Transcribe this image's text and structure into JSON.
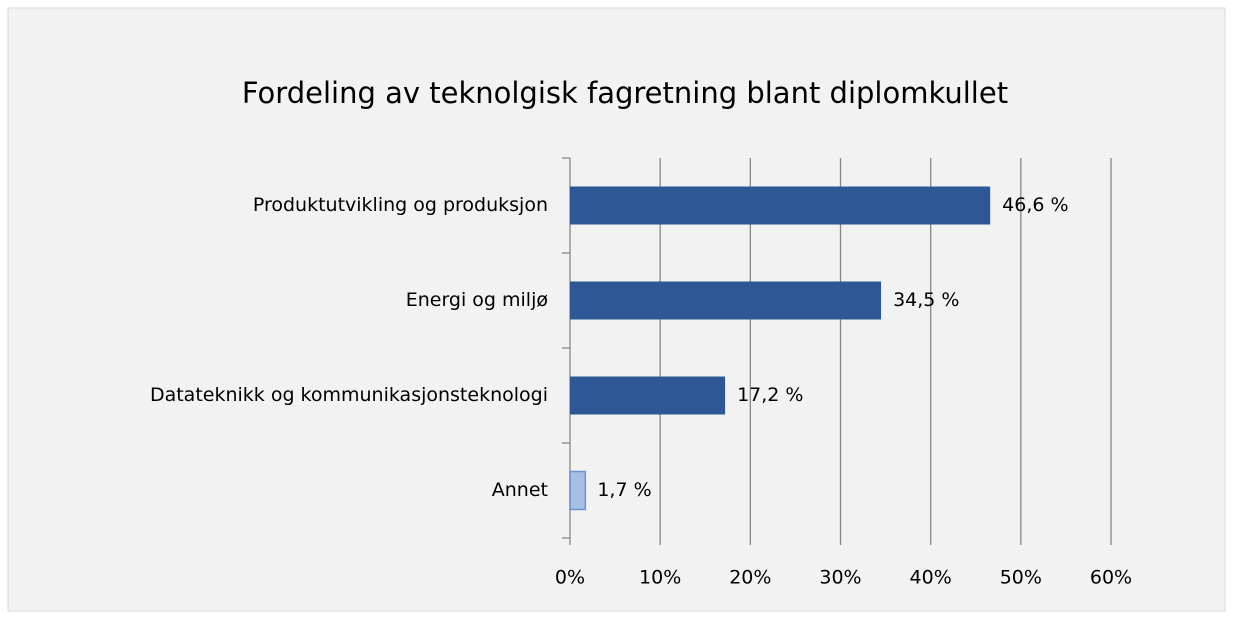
{
  "chart_data": {
    "type": "bar",
    "orientation": "horizontal",
    "title": "Fordeling av teknolgisk fagretning blant diplomkullet",
    "categories": [
      "Produktutvikling og produksjon",
      "Energi og miljø",
      "Datateknikk og kommunikasjonsteknologi",
      "Annet"
    ],
    "values": [
      46.6,
      34.5,
      17.2,
      1.7
    ],
    "value_labels": [
      "46,6 %",
      "34,5 %",
      "17,2 %",
      "1,7 %"
    ],
    "colors": [
      "#2e5795",
      "#2e5795",
      "#2e5795",
      "#a7bfe4"
    ],
    "xlim": [
      0,
      60
    ],
    "xticks": [
      {
        "value": 0,
        "label": "0%"
      },
      {
        "value": 10,
        "label": "10%"
      },
      {
        "value": 20,
        "label": "20%"
      },
      {
        "value": 30,
        "label": "30%"
      },
      {
        "value": 40,
        "label": "40%"
      },
      {
        "value": 50,
        "label": "50%"
      },
      {
        "value": 60,
        "label": "60%"
      }
    ],
    "grid": true
  }
}
